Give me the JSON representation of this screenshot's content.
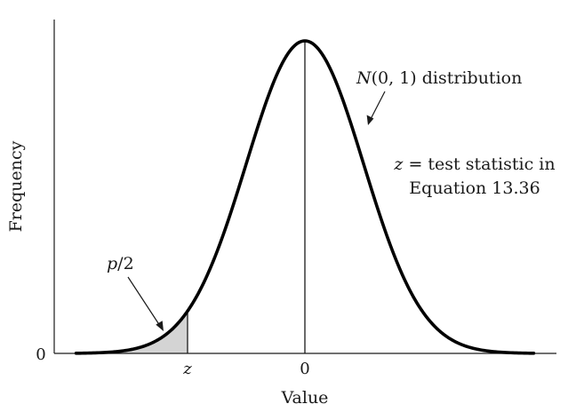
{
  "chart_data": {
    "type": "line",
    "title": "",
    "xlabel": "Value",
    "ylabel": "Frequency",
    "x_ticks": [
      {
        "label": "z",
        "value": -2.0
      },
      {
        "label": "0",
        "value": 0
      }
    ],
    "y_ticks": [
      {
        "label": "0",
        "value": 0
      }
    ],
    "xlim": [
      -4.3,
      4.35
    ],
    "series": [
      {
        "name": "N(0, 1) distribution",
        "curve": "normal",
        "mean": 0,
        "sd": 1,
        "x_range": [
          -3.9,
          3.9
        ]
      }
    ],
    "shaded_region": {
      "from": -3.9,
      "to": -2.0,
      "label": "p/2"
    },
    "mean_line": 0,
    "annotations": {
      "curve_label": {
        "prefix": "N",
        "suffix": "(0, 1) distribution"
      },
      "z_note": {
        "line1_var": "z",
        "line1_rest": " = test statistic in",
        "line2": "Equation 13.36"
      },
      "area_label": {
        "var": "p",
        "rest": "/2"
      }
    },
    "grid": false
  }
}
